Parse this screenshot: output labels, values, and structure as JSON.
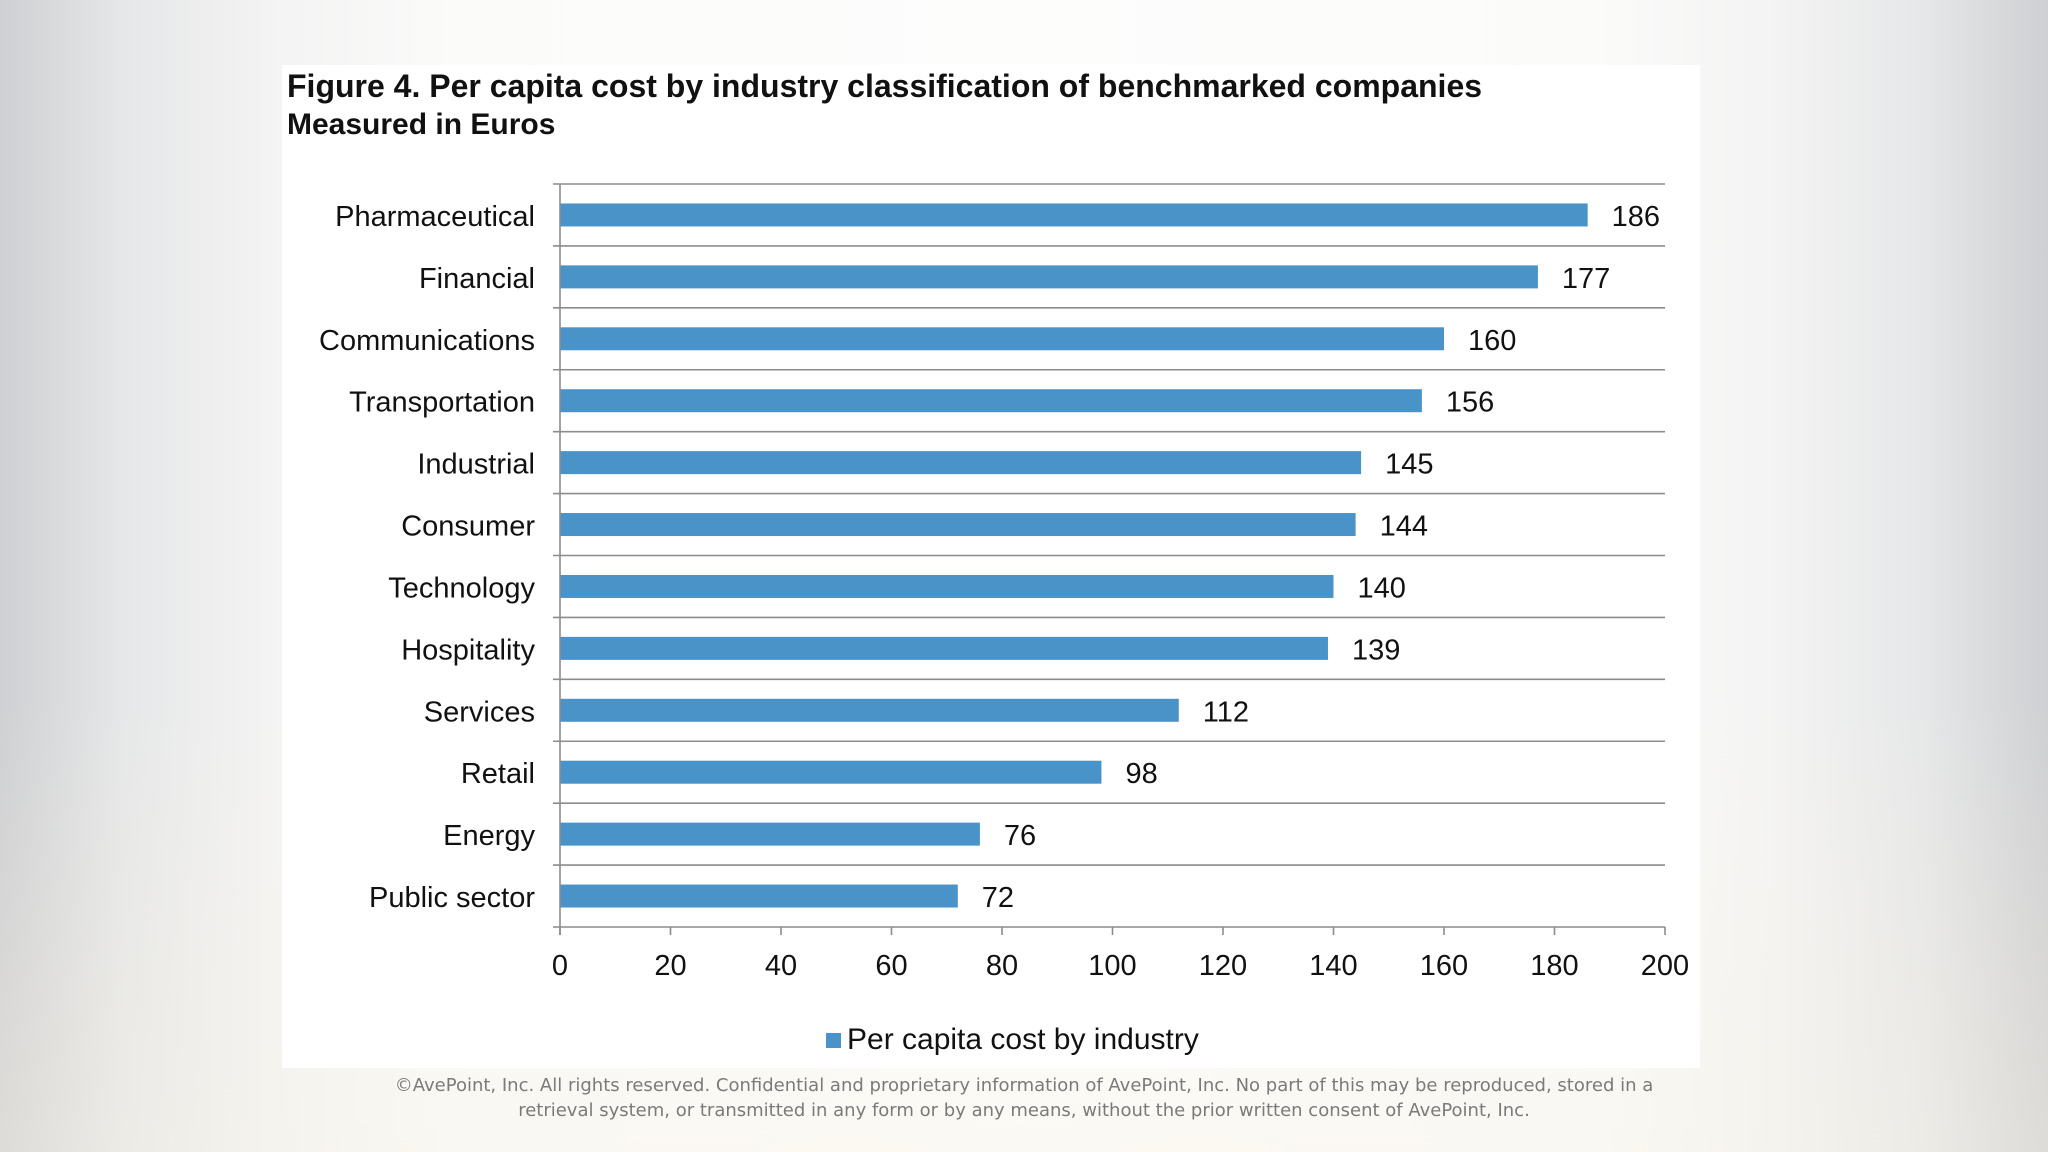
{
  "chart_data": {
    "type": "bar",
    "orientation": "horizontal",
    "title": "Figure 4. Per capita cost by industry classification of benchmarked companies",
    "subtitle": "Measured in Euros",
    "categories": [
      "Pharmaceutical",
      "Financial",
      "Communications",
      "Transportation",
      "Industrial",
      "Consumer",
      "Technology",
      "Hospitality",
      "Services",
      "Retail",
      "Energy",
      "Public sector"
    ],
    "series": [
      {
        "name": "Per capita cost by industry",
        "color": "#4a93c8",
        "values": [
          186,
          177,
          160,
          156,
          145,
          144,
          140,
          139,
          112,
          98,
          76,
          72
        ]
      }
    ],
    "xlim": [
      0,
      200
    ],
    "xticks": [
      0,
      20,
      40,
      60,
      80,
      100,
      120,
      140,
      160,
      180,
      200
    ],
    "xlabel": "",
    "ylabel": "",
    "grid": "horizontal-category-separators",
    "legend_position": "bottom-center"
  },
  "legend": {
    "label": "Per capita cost by industry"
  },
  "footer": {
    "line1": "©AvePoint, Inc. All rights reserved. Confidential and proprietary information of AvePoint, Inc. No part of this may be reproduced, stored in a",
    "line2": "retrieval system, or transmitted in any form or by any means, without the prior written consent of AvePoint, Inc."
  }
}
